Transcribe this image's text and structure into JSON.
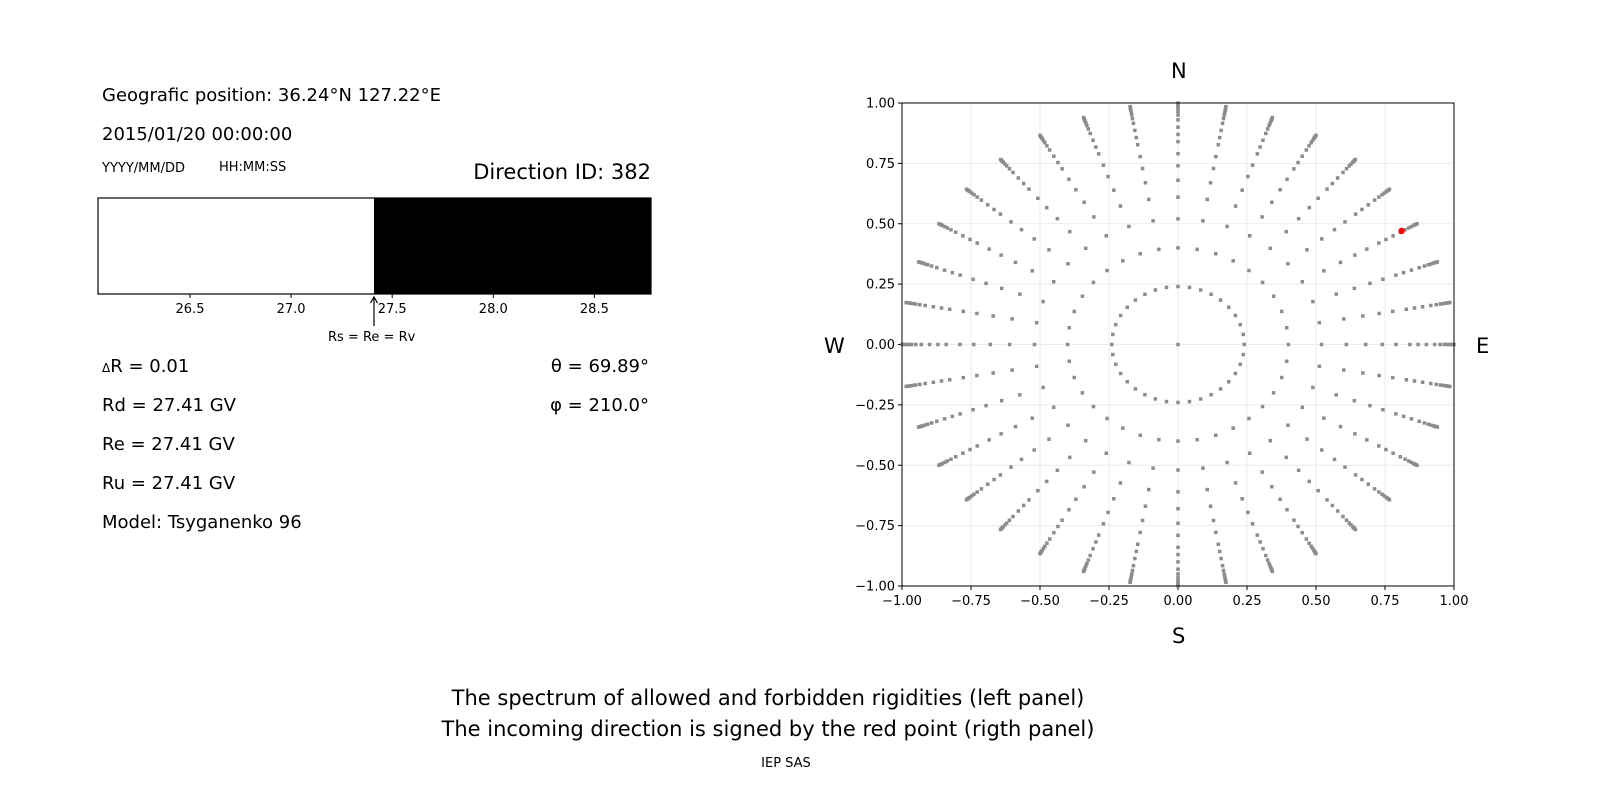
{
  "left_panel": {
    "position": "Geografic position: 36.24°N 127.22°E",
    "datetime": "2015/01/20 00:00:00",
    "date_format": "YYYY/MM/DD",
    "time_format": "HH:MM:SS",
    "direction_id": "Direction ID: 382",
    "arrow_label": "Rs = Re = Rv",
    "delta_r_symbol": "Δ",
    "delta_r": "R = 0.01",
    "rd": "Rd = 27.41 GV",
    "re": "Re = 27.41 GV",
    "ru": "Ru = 27.41 GV",
    "model": "Model: Tsyganenko 96",
    "theta": "θ = 69.89°",
    "phi": "φ = 210.0°"
  },
  "compass": {
    "n": "N",
    "s": "S",
    "w": "W",
    "e": "E"
  },
  "caption": {
    "line1": "The spectrum of allowed and forbidden rigidities (left panel)",
    "line2": "The incoming direction is signed by the red point (rigth panel)",
    "credit": "IEP SAS"
  },
  "chart_data": [
    {
      "type": "bar",
      "description_kind": "rigidity spectrum band",
      "xlim": [
        26.045,
        28.78
      ],
      "xticks": [
        "26.5",
        "27.0",
        "27.5",
        "28.0",
        "28.5"
      ],
      "allowed_range": [
        26.045,
        27.41
      ],
      "forbidden_range": [
        27.41,
        28.78
      ],
      "allowed_color": "#ffffff",
      "forbidden_color": "#000000",
      "marker_value": 27.41
    },
    {
      "type": "scatter",
      "xlim": [
        -1,
        1
      ],
      "ylim": [
        -1,
        1
      ],
      "xticks": [
        "−1.00",
        "−0.75",
        "−0.50",
        "−0.25",
        "0.00",
        "0.25",
        "0.50",
        "0.75",
        "1.00"
      ],
      "yticks": [
        "−1.00",
        "−0.75",
        "−0.50",
        "−0.25",
        "0.00",
        "0.25",
        "0.50",
        "0.75",
        "1.00"
      ],
      "grid": true,
      "grid_points": {
        "center": [
          0,
          0
        ],
        "inner_ring_radius": 0.24,
        "azimuth_step_deg": 10,
        "radii": [
          0.4,
          0.52,
          0.61,
          0.68,
          0.74,
          0.79,
          0.84,
          0.87,
          0.9,
          0.93,
          0.95,
          0.965,
          0.975,
          0.985,
          0.99,
          0.995,
          1.0
        ],
        "color": "#8c8c8c"
      },
      "highlight_point": {
        "x": 0.81,
        "y": 0.47,
        "color": "#ff0000"
      }
    }
  ]
}
